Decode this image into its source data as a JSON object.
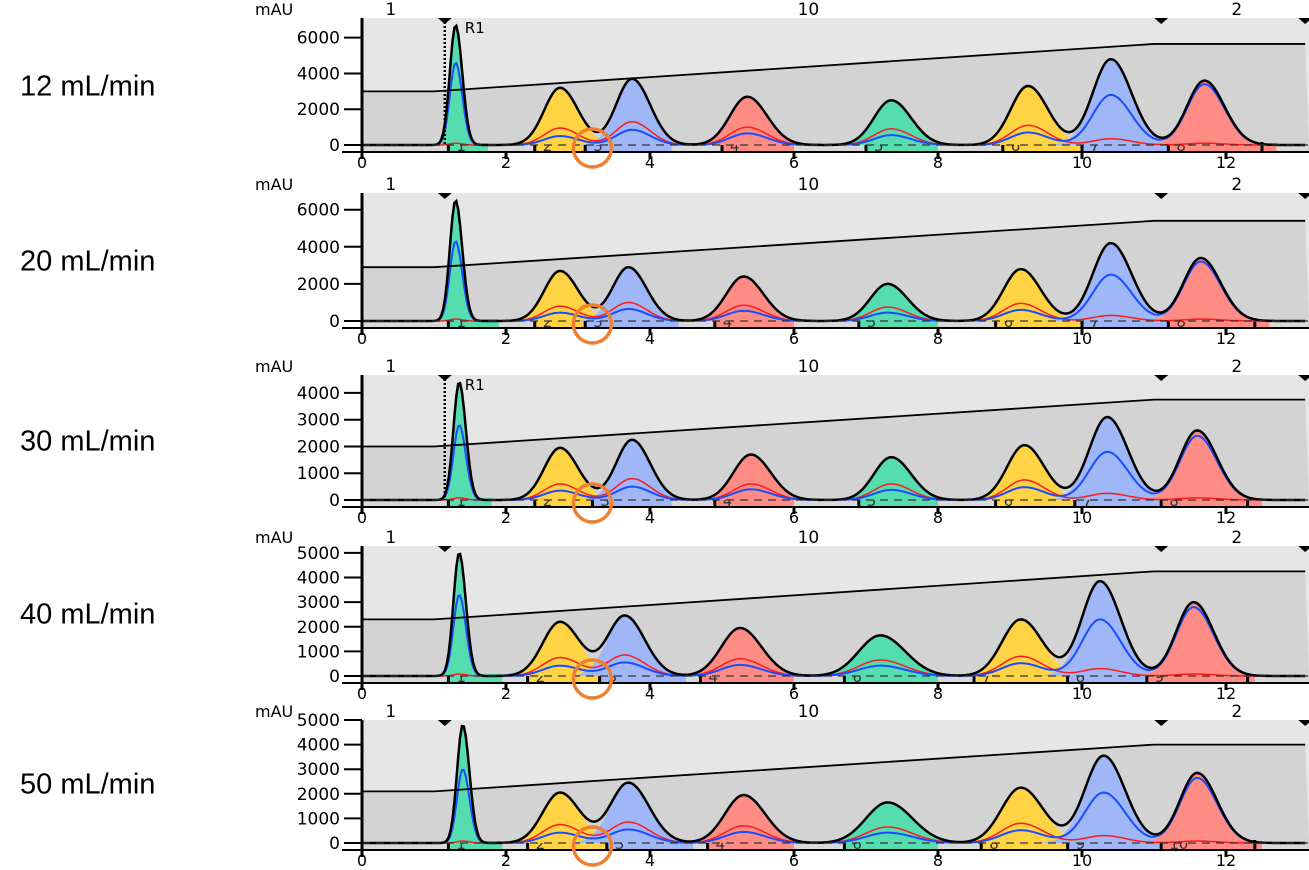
{
  "colors": {
    "green": "#55ddb0",
    "yellow": "#ffd343",
    "blue": "#9fb6f7",
    "salmon": "#ff8c84",
    "red_trace": "#ff1a1a",
    "blue_trace": "#1a4dff",
    "total_trace": "#000000",
    "bg_upper": "#e6e6e6",
    "bg_lower": "#d3d3d3",
    "highlight_circle": "#f08030"
  },
  "chart_data": [
    {
      "type": "line",
      "label": "12 mL/min",
      "ylabel": "mAU",
      "ylim": [
        0,
        7100
      ],
      "yticks": [
        0,
        2000,
        4000,
        6000
      ],
      "xlim": [
        0,
        13.1
      ],
      "xticks": [
        0,
        2,
        4,
        6,
        8,
        10,
        12
      ],
      "marker": "R1",
      "gradient": [
        [
          0,
          3000
        ],
        [
          1.0,
          3000
        ],
        [
          11.0,
          5650
        ],
        [
          13.1,
          5650
        ]
      ],
      "peaks": [
        {
          "t": 1.3,
          "h": 6700,
          "blue": 4600,
          "red": 100,
          "w": 0.08,
          "c": "green"
        },
        {
          "t": 2.75,
          "h": 3200,
          "red": 950,
          "blue": 500,
          "w": 0.22,
          "c": "yellow"
        },
        {
          "t": 3.75,
          "h": 3700,
          "red": 1300,
          "blue": 850,
          "w": 0.22,
          "c": "blue"
        },
        {
          "t": 5.35,
          "h": 2700,
          "red": 1000,
          "blue": 650,
          "w": 0.24,
          "c": "salmon"
        },
        {
          "t": 7.35,
          "h": 2500,
          "red": 900,
          "blue": 550,
          "w": 0.24,
          "c": "green"
        },
        {
          "t": 9.25,
          "h": 3300,
          "red": 1100,
          "blue": 700,
          "w": 0.24,
          "c": "yellow"
        },
        {
          "t": 10.4,
          "h": 4800,
          "red": 350,
          "blue": 2800,
          "w": 0.25,
          "c": "blue"
        },
        {
          "t": 11.7,
          "h": 3600,
          "red": 100,
          "blue": 3400,
          "w": 0.24,
          "c": "salmon"
        }
      ],
      "fractions": [
        {
          "n": "1",
          "a": 1.2,
          "b": 1.75,
          "c": "green"
        },
        {
          "n": "2",
          "a": 2.4,
          "b": 3.1,
          "c": "yellow"
        },
        {
          "n": "3",
          "a": 3.1,
          "b": 4.3,
          "c": "blue"
        },
        {
          "n": "4",
          "a": 5.0,
          "b": 6.0,
          "c": "salmon"
        },
        {
          "n": "5",
          "a": 7.0,
          "b": 8.0,
          "c": "green"
        },
        {
          "n": "6",
          "a": 8.9,
          "b": 10.0,
          "c": "yellow"
        },
        {
          "n": "7",
          "a": 10.0,
          "b": 11.2,
          "c": "blue"
        },
        {
          "n": "8",
          "a": 11.2,
          "b": 12.5,
          "c": "salmon"
        },
        {
          "n": "",
          "a": 12.5,
          "b": 12.7,
          "c": "salmon"
        }
      ]
    },
    {
      "type": "line",
      "label": "20 mL/min",
      "ylabel": "mAU",
      "ylim": [
        0,
        6900
      ],
      "yticks": [
        0,
        2000,
        4000,
        6000
      ],
      "xlim": [
        0,
        13.1
      ],
      "xticks": [
        0,
        2,
        4,
        6,
        8,
        10,
        12
      ],
      "marker": "",
      "gradient": [
        [
          0,
          2900
        ],
        [
          1.0,
          2900
        ],
        [
          11.0,
          5400
        ],
        [
          13.1,
          5400
        ]
      ],
      "peaks": [
        {
          "t": 1.3,
          "h": 6500,
          "blue": 4300,
          "red": 100,
          "w": 0.08,
          "c": "green"
        },
        {
          "t": 2.75,
          "h": 2700,
          "red": 800,
          "blue": 450,
          "w": 0.22,
          "c": "yellow"
        },
        {
          "t": 3.7,
          "h": 2900,
          "red": 1000,
          "blue": 650,
          "w": 0.22,
          "c": "blue"
        },
        {
          "t": 5.3,
          "h": 2400,
          "red": 850,
          "blue": 550,
          "w": 0.24,
          "c": "salmon"
        },
        {
          "t": 7.3,
          "h": 2000,
          "red": 750,
          "blue": 450,
          "w": 0.24,
          "c": "green"
        },
        {
          "t": 9.15,
          "h": 2800,
          "red": 950,
          "blue": 600,
          "w": 0.24,
          "c": "yellow"
        },
        {
          "t": 10.4,
          "h": 4200,
          "red": 300,
          "blue": 2500,
          "w": 0.25,
          "c": "blue"
        },
        {
          "t": 11.65,
          "h": 3400,
          "red": 100,
          "blue": 3200,
          "w": 0.24,
          "c": "salmon"
        }
      ],
      "fractions": [
        {
          "n": "1",
          "a": 1.2,
          "b": 1.9,
          "c": "green"
        },
        {
          "n": "2",
          "a": 2.4,
          "b": 3.1,
          "c": "yellow"
        },
        {
          "n": "3",
          "a": 3.1,
          "b": 4.4,
          "c": "blue"
        },
        {
          "n": "4",
          "a": 4.9,
          "b": 6.0,
          "c": "salmon"
        },
        {
          "n": "5",
          "a": 6.9,
          "b": 8.0,
          "c": "green"
        },
        {
          "n": "6",
          "a": 8.8,
          "b": 10.0,
          "c": "yellow"
        },
        {
          "n": "7",
          "a": 10.0,
          "b": 11.2,
          "c": "blue"
        },
        {
          "n": "8",
          "a": 11.2,
          "b": 12.4,
          "c": "salmon"
        },
        {
          "n": "",
          "a": 12.4,
          "b": 12.6,
          "c": "salmon"
        }
      ]
    },
    {
      "type": "line",
      "label": "30 mL/min",
      "ylabel": "mAU",
      "ylim": [
        0,
        4670
      ],
      "yticks": [
        0,
        1000,
        2000,
        3000,
        4000
      ],
      "xlim": [
        0,
        13.1
      ],
      "xticks": [
        0,
        2,
        4,
        6,
        8,
        10,
        12
      ],
      "marker": "R1",
      "gradient": [
        [
          0,
          2000
        ],
        [
          1.0,
          2000
        ],
        [
          11.0,
          3750
        ],
        [
          13.1,
          3750
        ]
      ],
      "peaks": [
        {
          "t": 1.35,
          "h": 4400,
          "blue": 2800,
          "red": 80,
          "w": 0.08,
          "c": "green"
        },
        {
          "t": 2.75,
          "h": 1950,
          "red": 600,
          "blue": 350,
          "w": 0.22,
          "c": "yellow"
        },
        {
          "t": 3.75,
          "h": 2250,
          "red": 800,
          "blue": 500,
          "w": 0.22,
          "c": "blue"
        },
        {
          "t": 5.4,
          "h": 1700,
          "red": 600,
          "blue": 400,
          "w": 0.24,
          "c": "salmon"
        },
        {
          "t": 7.35,
          "h": 1600,
          "red": 600,
          "blue": 380,
          "w": 0.24,
          "c": "green"
        },
        {
          "t": 9.2,
          "h": 2050,
          "red": 750,
          "blue": 480,
          "w": 0.24,
          "c": "yellow"
        },
        {
          "t": 10.35,
          "h": 3100,
          "red": 250,
          "blue": 1800,
          "w": 0.25,
          "c": "blue"
        },
        {
          "t": 11.6,
          "h": 2600,
          "red": 80,
          "blue": 2400,
          "w": 0.24,
          "c": "salmon"
        }
      ],
      "fractions": [
        {
          "n": "1",
          "a": 1.2,
          "b": 1.8,
          "c": "green"
        },
        {
          "n": "2",
          "a": 2.4,
          "b": 3.2,
          "c": "yellow"
        },
        {
          "n": "3",
          "a": 3.2,
          "b": 4.3,
          "c": "blue"
        },
        {
          "n": "4",
          "a": 4.9,
          "b": 6.0,
          "c": "salmon"
        },
        {
          "n": "5",
          "a": 6.9,
          "b": 8.0,
          "c": "green"
        },
        {
          "n": "6",
          "a": 8.8,
          "b": 9.9,
          "c": "yellow"
        },
        {
          "n": "7",
          "a": 9.9,
          "b": 11.1,
          "c": "blue"
        },
        {
          "n": "8",
          "a": 11.1,
          "b": 12.3,
          "c": "salmon"
        },
        {
          "n": "",
          "a": 12.3,
          "b": 12.5,
          "c": "salmon"
        }
      ]
    },
    {
      "type": "line",
      "label": "40 mL/min",
      "ylabel": "mAU",
      "ylim": [
        0,
        5280
      ],
      "yticks": [
        0,
        1000,
        2000,
        3000,
        4000,
        5000
      ],
      "xlim": [
        0,
        13.1
      ],
      "xticks": [
        0,
        2,
        4,
        6,
        8,
        10,
        12
      ],
      "marker": "",
      "gradient": [
        [
          0,
          2300
        ],
        [
          1.0,
          2300
        ],
        [
          11.0,
          4250
        ],
        [
          13.1,
          4250
        ]
      ],
      "peaks": [
        {
          "t": 1.35,
          "h": 5000,
          "blue": 3300,
          "red": 80,
          "w": 0.08,
          "c": "green"
        },
        {
          "t": 2.75,
          "h": 2200,
          "red": 750,
          "blue": 420,
          "w": 0.24,
          "c": "yellow"
        },
        {
          "t": 3.65,
          "h": 2450,
          "red": 850,
          "blue": 550,
          "w": 0.24,
          "c": "blue"
        },
        {
          "t": 5.25,
          "h": 1950,
          "red": 700,
          "blue": 450,
          "w": 0.26,
          "c": "salmon"
        },
        {
          "t": 7.2,
          "h": 1650,
          "red": 650,
          "blue": 420,
          "w": 0.3,
          "c": "green"
        },
        {
          "t": 9.15,
          "h": 2300,
          "red": 800,
          "blue": 520,
          "w": 0.26,
          "c": "yellow"
        },
        {
          "t": 10.25,
          "h": 3850,
          "red": 300,
          "blue": 2300,
          "w": 0.25,
          "c": "blue"
        },
        {
          "t": 11.55,
          "h": 3000,
          "red": 80,
          "blue": 2800,
          "w": 0.24,
          "c": "salmon"
        }
      ],
      "fractions": [
        {
          "n": "1",
          "a": 1.2,
          "b": 1.95,
          "c": "green"
        },
        {
          "n": "2",
          "a": 2.3,
          "b": 3.3,
          "c": "yellow"
        },
        {
          "n": "3",
          "a": 3.3,
          "b": 4.5,
          "c": "blue"
        },
        {
          "n": "4",
          "a": 4.7,
          "b": 6.0,
          "c": "salmon"
        },
        {
          "n": "6",
          "a": 6.7,
          "b": 8.0,
          "c": "green"
        },
        {
          "n": "7",
          "a": 8.5,
          "b": 9.8,
          "c": "yellow"
        },
        {
          "n": "8",
          "a": 9.8,
          "b": 10.9,
          "c": "blue"
        },
        {
          "n": "9",
          "a": 10.9,
          "b": 12.3,
          "c": "salmon"
        },
        {
          "n": "",
          "a": 12.3,
          "b": 12.4,
          "c": "salmon"
        }
      ]
    },
    {
      "type": "line",
      "label": "50 mL/min",
      "ylabel": "mAU",
      "ylim": [
        0,
        5000
      ],
      "yticks": [
        0,
        1000,
        2000,
        3000,
        4000,
        5000
      ],
      "xlim": [
        0,
        13.1
      ],
      "xticks": [
        0,
        2,
        4,
        6,
        8,
        10,
        12
      ],
      "marker": "",
      "gradient": [
        [
          0,
          2100
        ],
        [
          1.0,
          2100
        ],
        [
          11.0,
          4000
        ],
        [
          13.1,
          4000
        ]
      ],
      "peaks": [
        {
          "t": 1.4,
          "h": 4800,
          "blue": 3000,
          "red": 80,
          "w": 0.08,
          "c": "green"
        },
        {
          "t": 2.75,
          "h": 2050,
          "red": 750,
          "blue": 420,
          "w": 0.24,
          "c": "yellow"
        },
        {
          "t": 3.7,
          "h": 2450,
          "red": 850,
          "blue": 550,
          "w": 0.25,
          "c": "blue"
        },
        {
          "t": 5.3,
          "h": 1950,
          "red": 700,
          "blue": 450,
          "w": 0.26,
          "c": "salmon"
        },
        {
          "t": 7.3,
          "h": 1650,
          "red": 650,
          "blue": 420,
          "w": 0.3,
          "c": "green"
        },
        {
          "t": 9.15,
          "h": 2250,
          "red": 800,
          "blue": 520,
          "w": 0.27,
          "c": "yellow"
        },
        {
          "t": 10.3,
          "h": 3550,
          "red": 300,
          "blue": 2050,
          "w": 0.26,
          "c": "blue"
        },
        {
          "t": 11.6,
          "h": 2850,
          "red": 80,
          "blue": 2650,
          "w": 0.24,
          "c": "salmon"
        }
      ],
      "fractions": [
        {
          "n": "1",
          "a": 1.2,
          "b": 1.95,
          "c": "green"
        },
        {
          "n": "2",
          "a": 2.3,
          "b": 3.4,
          "c": "yellow"
        },
        {
          "n": "3",
          "a": 3.4,
          "b": 4.6,
          "c": "blue"
        },
        {
          "n": "4",
          "a": 4.8,
          "b": 6.0,
          "c": "salmon"
        },
        {
          "n": "6",
          "a": 6.7,
          "b": 8.0,
          "c": "green"
        },
        {
          "n": "8",
          "a": 8.6,
          "b": 9.8,
          "c": "yellow"
        },
        {
          "n": "9",
          "a": 9.8,
          "b": 11.1,
          "c": "blue"
        },
        {
          "n": "10",
          "a": 11.1,
          "b": 12.4,
          "c": "salmon"
        },
        {
          "n": "",
          "a": 12.4,
          "b": 12.5,
          "c": "salmon"
        }
      ]
    }
  ],
  "top_markers": [
    {
      "label": "1",
      "t": 0.4
    },
    {
      "label": "10",
      "t": 6.2
    },
    {
      "label": "2",
      "t": 12.15
    }
  ],
  "event_triangles": [
    1.15,
    11.1,
    13.1
  ],
  "highlight_time": 3.2
}
